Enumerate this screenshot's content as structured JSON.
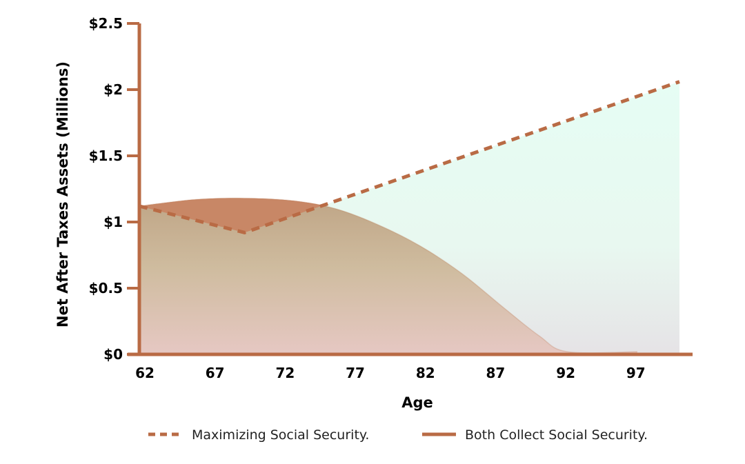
{
  "chart_data": {
    "type": "area",
    "title": "",
    "xlabel": "Age",
    "ylabel": "Net After Taxes Assets (Millions)",
    "xlim": [
      62,
      100.5
    ],
    "ylim": [
      0,
      2.5
    ],
    "x_ticks": [
      62,
      67,
      72,
      77,
      82,
      87,
      92,
      97
    ],
    "x_tick_labels": [
      "62",
      "67",
      "72",
      "77",
      "82",
      "87",
      "92",
      "97"
    ],
    "y_ticks": [
      0,
      0.5,
      1,
      1.5,
      2,
      2.5
    ],
    "y_tick_labels": [
      "$0",
      "$0.5",
      "$1",
      "$1.5",
      "$2",
      "$2.5"
    ],
    "grid": false,
    "legend_position": "bottom",
    "colors": {
      "axis": "#b96b45",
      "line": "#b96b45",
      "max_fill_top": "#e6fdf4",
      "max_fill_bottom": "#e6e3e6",
      "both_fill_top": "#bfa586",
      "both_fill_bottom": "#e6c8c3",
      "overlap_fill": "#c88766"
    },
    "series": [
      {
        "name": "Maximizing Social Security.",
        "style": "dashed",
        "x": [
          62,
          69.5,
          100.5
        ],
        "y": [
          1.12,
          0.92,
          2.06
        ]
      },
      {
        "name": "Both Collect Social Security.",
        "style": "solid",
        "x": [
          62,
          66,
          69.5,
          73,
          76,
          79,
          82,
          85,
          88,
          90.5,
          92.5,
          97.5
        ],
        "y": [
          1.12,
          1.17,
          1.18,
          1.16,
          1.1,
          0.98,
          0.82,
          0.61,
          0.35,
          0.14,
          0.02,
          0.02
        ]
      }
    ]
  }
}
